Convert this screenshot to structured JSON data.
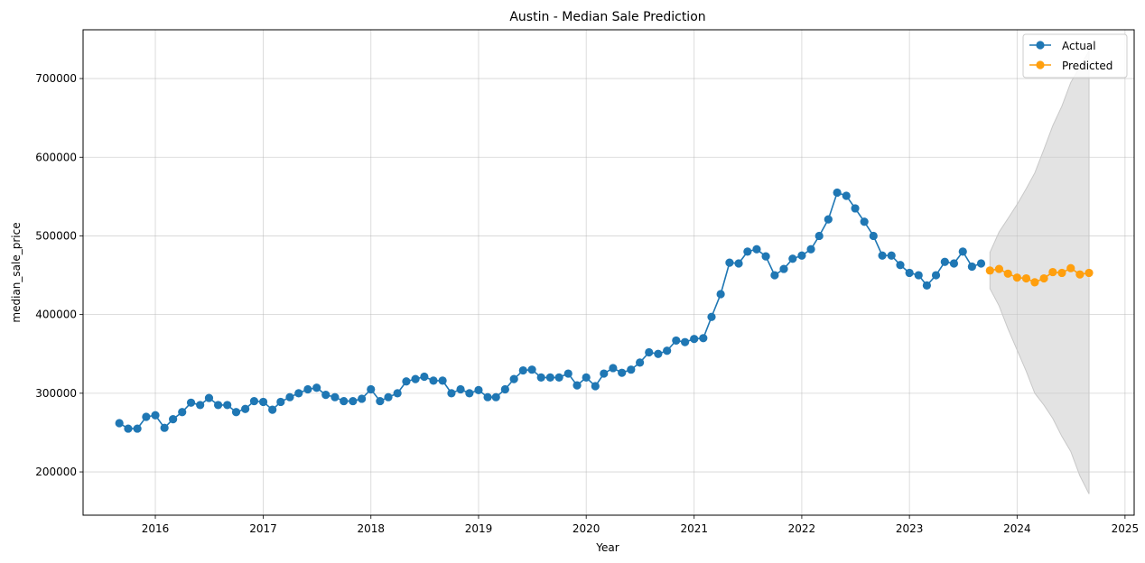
{
  "chart_data": {
    "type": "line",
    "title": "Austin - Median Sale Prediction",
    "xlabel": "Year",
    "ylabel": "median_sale_price",
    "xlim": [
      "2015-05-01",
      "2025-02-01"
    ],
    "ylim": [
      145000,
      762000
    ],
    "x_ticks": [
      "2016",
      "2017",
      "2018",
      "2019",
      "2020",
      "2021",
      "2022",
      "2023",
      "2024",
      "2025"
    ],
    "y_ticks": [
      200000,
      300000,
      400000,
      500000,
      600000,
      700000
    ],
    "grid": true,
    "legend": "top-right",
    "colors": {
      "actual": "#1f77b4",
      "predicted": "#ff9f0e",
      "interval": "#c8c8c8"
    },
    "series": [
      {
        "name": "Actual",
        "x": [
          "2015-09-01",
          "2015-10-01",
          "2015-11-01",
          "2015-12-01",
          "2016-01-01",
          "2016-02-01",
          "2016-03-01",
          "2016-04-01",
          "2016-05-01",
          "2016-06-01",
          "2016-07-01",
          "2016-08-01",
          "2016-09-01",
          "2016-10-01",
          "2016-11-01",
          "2016-12-01",
          "2017-01-01",
          "2017-02-01",
          "2017-03-01",
          "2017-04-01",
          "2017-05-01",
          "2017-06-01",
          "2017-07-01",
          "2017-08-01",
          "2017-09-01",
          "2017-10-01",
          "2017-11-01",
          "2017-12-01",
          "2018-01-01",
          "2018-02-01",
          "2018-03-01",
          "2018-04-01",
          "2018-05-01",
          "2018-06-01",
          "2018-07-01",
          "2018-08-01",
          "2018-09-01",
          "2018-10-01",
          "2018-11-01",
          "2018-12-01",
          "2019-01-01",
          "2019-02-01",
          "2019-03-01",
          "2019-04-01",
          "2019-05-01",
          "2019-06-01",
          "2019-07-01",
          "2019-08-01",
          "2019-09-01",
          "2019-10-01",
          "2019-11-01",
          "2019-12-01",
          "2020-01-01",
          "2020-02-01",
          "2020-03-01",
          "2020-04-01",
          "2020-05-01",
          "2020-06-01",
          "2020-07-01",
          "2020-08-01",
          "2020-09-01",
          "2020-10-01",
          "2020-11-01",
          "2020-12-01",
          "2021-01-01",
          "2021-02-01",
          "2021-03-01",
          "2021-04-01",
          "2021-05-01",
          "2021-06-01",
          "2021-07-01",
          "2021-08-01",
          "2021-09-01",
          "2021-10-01",
          "2021-11-01",
          "2021-12-01",
          "2022-01-01",
          "2022-02-01",
          "2022-03-01",
          "2022-04-01",
          "2022-05-01",
          "2022-06-01",
          "2022-07-01",
          "2022-08-01",
          "2022-09-01",
          "2022-10-01",
          "2022-11-01",
          "2022-12-01",
          "2023-01-01",
          "2023-02-01",
          "2023-03-01",
          "2023-04-01",
          "2023-05-01",
          "2023-06-01",
          "2023-07-01",
          "2023-08-01",
          "2023-09-01"
        ],
        "y": [
          262000,
          255000,
          255000,
          270000,
          272000,
          256000,
          267000,
          276000,
          288000,
          285000,
          294000,
          285000,
          285000,
          276000,
          280000,
          290000,
          289000,
          279000,
          289000,
          295000,
          300000,
          305000,
          307000,
          298000,
          295000,
          290000,
          290000,
          293000,
          305000,
          290000,
          295000,
          300000,
          315000,
          318000,
          321000,
          316000,
          316000,
          300000,
          305000,
          300000,
          304000,
          295000,
          295000,
          305000,
          318000,
          329000,
          330000,
          320000,
          320000,
          320000,
          325000,
          310000,
          320000,
          309000,
          325000,
          332000,
          326000,
          330000,
          339000,
          352000,
          350000,
          354000,
          367000,
          365000,
          369000,
          370000,
          397000,
          426000,
          466000,
          465000,
          480000,
          483000,
          474000,
          450000,
          458000,
          471000,
          475000,
          483000,
          500000,
          521000,
          555000,
          551000,
          535000,
          518000,
          500000,
          475000,
          475000,
          463000,
          453000,
          450000,
          437000,
          450000,
          467000,
          465000,
          480000,
          461000,
          465000
        ]
      },
      {
        "name": "Predicted",
        "x": [
          "2023-10-01",
          "2023-11-01",
          "2023-12-01",
          "2024-01-01",
          "2024-02-01",
          "2024-03-01",
          "2024-04-01",
          "2024-05-01",
          "2024-06-01",
          "2024-07-01",
          "2024-08-01",
          "2024-09-01"
        ],
        "y": [
          456000,
          458000,
          452000,
          447000,
          446000,
          441000,
          446000,
          454000,
          453000,
          459000,
          451000,
          453000
        ],
        "lower": [
          433000,
          411000,
          382000,
          355000,
          328000,
          300000,
          285000,
          268000,
          245000,
          226000,
          195000,
          172000
        ],
        "upper": [
          479000,
          505000,
          522000,
          540000,
          560000,
          580000,
          610000,
          640000,
          665000,
          695000,
          715000,
          735000
        ]
      }
    ]
  }
}
